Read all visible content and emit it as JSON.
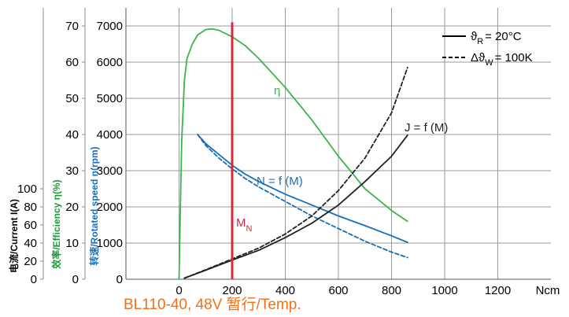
{
  "chart_data": {
    "type": "line",
    "x_axis": {
      "ticks": [
        "0",
        "200",
        "400",
        "600",
        "800",
        "1000",
        "1200"
      ],
      "unit": "Ncm",
      "range": [
        -200,
        1400
      ]
    },
    "y_axes": {
      "speed": {
        "label": "转速/Rotated speed n(rpm)",
        "ticks": [
          "0",
          "1000",
          "2000",
          "3000",
          "4000",
          "5000",
          "6000",
          "7000"
        ],
        "range": [
          0,
          7500
        ],
        "color": "#1a6eb8"
      },
      "efficiency": {
        "label": "效率/Efficiency η(%)",
        "ticks": [
          "0",
          "10",
          "20",
          "30",
          "40",
          "50",
          "60",
          "70"
        ],
        "range": [
          0,
          75
        ],
        "color": "#1a9a3a"
      },
      "current": {
        "label": "电流/Current I(A)",
        "ticks": [
          "0",
          "20",
          "40",
          "60",
          "80",
          "100"
        ],
        "range": [
          0,
          300
        ],
        "color": "#000000"
      }
    },
    "series": [
      {
        "name": "η",
        "axis": "efficiency",
        "style": "solid",
        "color": "#3cb44b",
        "x": [
          0,
          5,
          10,
          20,
          30,
          50,
          70,
          100,
          125,
          150,
          200,
          250,
          300,
          400,
          500,
          600,
          700,
          800,
          860
        ],
        "y": [
          0,
          20,
          38,
          55,
          61,
          65,
          67.5,
          69,
          69.2,
          68.8,
          67,
          64.5,
          61,
          53,
          44,
          34,
          25,
          19,
          16
        ]
      },
      {
        "name": "N = f (M)",
        "axis": "speed",
        "style": "solid",
        "color": "#1a6eb8",
        "x": [
          70,
          100,
          150,
          200,
          250,
          300,
          400,
          500,
          600,
          700,
          800,
          860
        ],
        "y": [
          4000,
          3750,
          3450,
          3150,
          2900,
          2700,
          2350,
          2050,
          1750,
          1480,
          1200,
          1020
        ]
      },
      {
        "name": "N = f (M) ΔϑW = 100K",
        "axis": "speed",
        "style": "dashed",
        "color": "#1a6eb8",
        "x": [
          70,
          100,
          150,
          200,
          250,
          300,
          400,
          500,
          600,
          700,
          800,
          860
        ],
        "y": [
          4000,
          3700,
          3350,
          3050,
          2780,
          2550,
          2150,
          1750,
          1400,
          1050,
          750,
          600
        ]
      },
      {
        "name": "J = f (M)",
        "axis": "speed",
        "style": "solid",
        "color": "#222222",
        "x": [
          20,
          100,
          200,
          300,
          400,
          500,
          600,
          700,
          800,
          860
        ],
        "y": [
          30,
          250,
          530,
          800,
          1150,
          1550,
          2050,
          2700,
          3400,
          3980
        ]
      },
      {
        "name": "J = f (M) ΔϑW = 100K",
        "axis": "speed",
        "style": "dashed",
        "color": "#222222",
        "x": [
          20,
          100,
          200,
          300,
          400,
          500,
          600,
          700,
          800,
          860
        ],
        "y": [
          30,
          260,
          560,
          860,
          1250,
          1750,
          2450,
          3350,
          4600,
          5850
        ]
      }
    ],
    "marker": {
      "label": "M",
      "subscript": "N",
      "x": 200,
      "color": "#d42a3a",
      "y_top": 7100
    },
    "legend": {
      "placement": "top-right",
      "entries": [
        {
          "style": "solid",
          "symbol": "ϑ",
          "sub": "R",
          "text": "= 20°C"
        },
        {
          "style": "dashed",
          "symbol": "Δϑ",
          "sub": "W",
          "text": "= 100K"
        }
      ]
    },
    "curve_labels": {
      "eta": "η",
      "speed": "N = f (M)",
      "current": "J = f (M)"
    }
  },
  "caption": "BL110-40, 48V  暂行/Temp."
}
